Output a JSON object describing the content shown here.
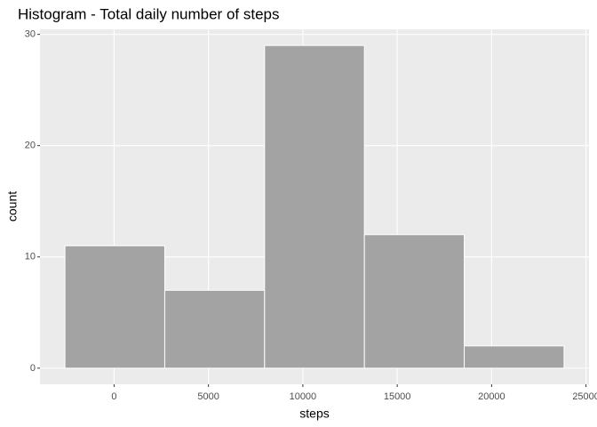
{
  "chart_data": {
    "type": "histogram",
    "title": "Histogram - Total daily number of steps",
    "x_label": "steps",
    "y_label": "count",
    "bins": [
      -2603,
      2685,
      7973,
      13261,
      18549,
      23837
    ],
    "values": [
      11,
      7,
      29,
      12,
      2
    ],
    "color": "#A3A3A3",
    "edge_color": "#FFFFFF",
    "panel_color": "#EBEBEB",
    "xlim": [
      -3925,
      25159
    ],
    "xticks": [
      0,
      5000,
      10000,
      15000,
      20000,
      25000
    ],
    "ylim": [
      -1.45,
      30.45
    ],
    "yticks": [
      0,
      10,
      20,
      30
    ],
    "grid": true
  }
}
